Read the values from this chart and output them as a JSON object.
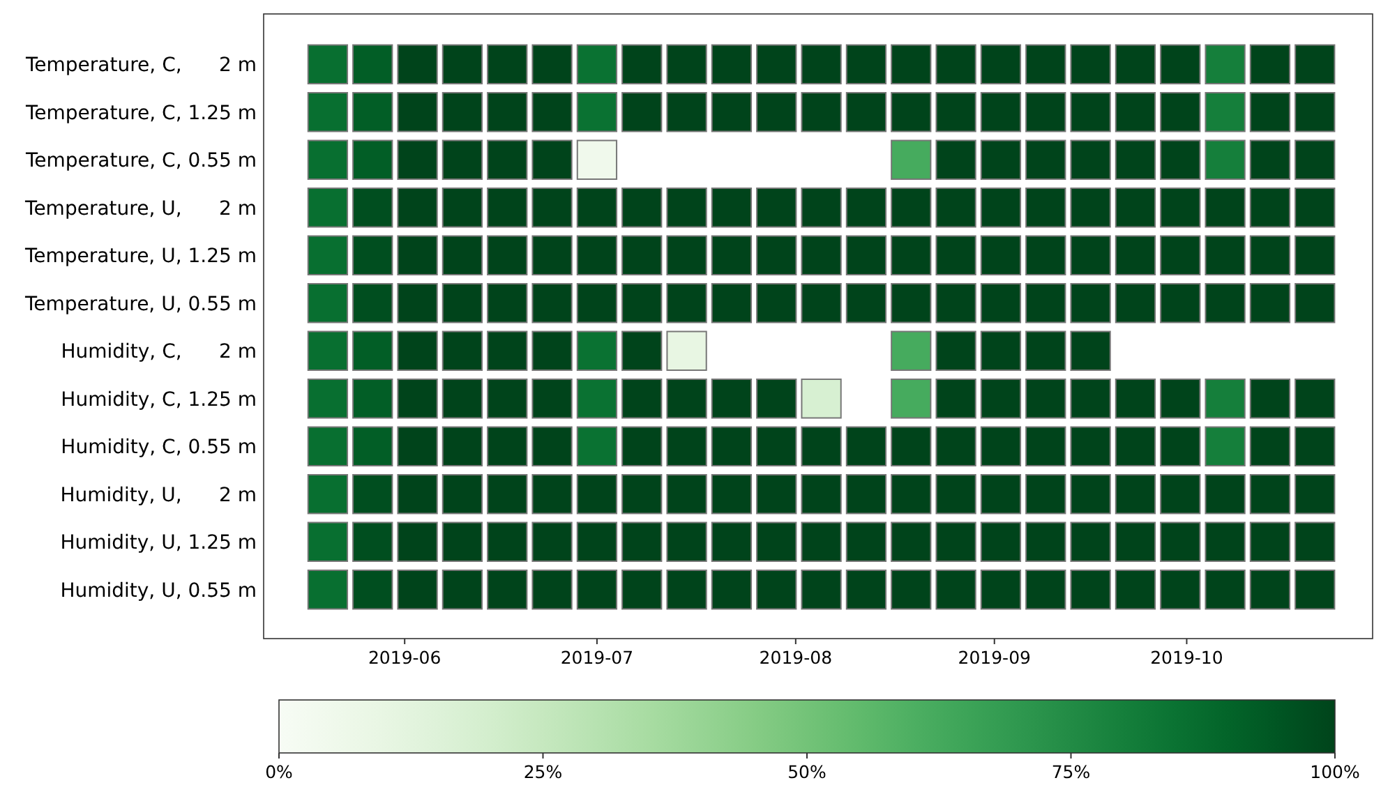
{
  "chart_data": {
    "type": "heatmap",
    "x": [
      "2019-05-20",
      "2019-05-27",
      "2019-06-03",
      "2019-06-10",
      "2019-06-17",
      "2019-06-24",
      "2019-07-01",
      "2019-07-08",
      "2019-07-15",
      "2019-07-22",
      "2019-07-29",
      "2019-08-05",
      "2019-08-12",
      "2019-08-19",
      "2019-08-26",
      "2019-09-02",
      "2019-09-09",
      "2019-09-16",
      "2019-09-23",
      "2019-09-30",
      "2019-10-07",
      "2019-10-14",
      "2019-10-21"
    ],
    "xlim": [
      "2019-05-10",
      "2019-10-30"
    ],
    "xticks": [
      {
        "value": "2019-06-01",
        "label": "2019-06"
      },
      {
        "value": "2019-07-01",
        "label": "2019-07"
      },
      {
        "value": "2019-08-01",
        "label": "2019-08"
      },
      {
        "value": "2019-09-01",
        "label": "2019-09"
      },
      {
        "value": "2019-10-01",
        "label": "2019-10"
      }
    ],
    "y_categories": [
      "Temperature, C,      2 m",
      "Temperature, C, 1.25 m",
      "Temperature, C, 0.55 m",
      "Temperature, U,      2 m",
      "Temperature, U, 1.25 m",
      "Temperature, U, 0.55 m",
      "Humidity, C,      2 m",
      "Humidity, C, 1.25 m",
      "Humidity, C, 0.55 m",
      "Humidity, U,      2 m",
      "Humidity, U, 1.25 m",
      "Humidity, U, 0.55 m"
    ],
    "cells": [
      [
        86,
        92,
        100,
        100,
        100,
        100,
        85,
        100,
        100,
        100,
        100,
        100,
        100,
        100,
        100,
        100,
        100,
        100,
        100,
        100,
        80,
        100,
        100
      ],
      [
        86,
        92,
        100,
        100,
        100,
        100,
        85,
        100,
        100,
        100,
        100,
        100,
        100,
        100,
        100,
        100,
        100,
        100,
        100,
        100,
        80,
        100,
        100
      ],
      [
        86,
        92,
        100,
        100,
        100,
        100,
        5,
        null,
        null,
        null,
        null,
        null,
        null,
        62,
        100,
        100,
        100,
        100,
        100,
        100,
        80,
        100,
        100
      ],
      [
        86,
        97,
        100,
        100,
        100,
        100,
        100,
        100,
        100,
        100,
        100,
        100,
        100,
        100,
        100,
        100,
        100,
        100,
        100,
        100,
        100,
        100,
        100
      ],
      [
        86,
        97,
        100,
        100,
        100,
        100,
        100,
        100,
        100,
        100,
        100,
        100,
        100,
        100,
        100,
        100,
        100,
        100,
        100,
        100,
        100,
        100,
        100
      ],
      [
        86,
        97,
        100,
        100,
        100,
        100,
        100,
        100,
        100,
        100,
        100,
        100,
        100,
        100,
        100,
        100,
        100,
        100,
        100,
        100,
        100,
        100,
        100
      ],
      [
        86,
        92,
        100,
        100,
        100,
        100,
        85,
        100,
        10,
        null,
        null,
        null,
        null,
        62,
        100,
        100,
        100,
        100,
        null,
        null,
        null,
        null,
        null
      ],
      [
        86,
        92,
        100,
        100,
        100,
        100,
        85,
        100,
        100,
        100,
        100,
        18,
        null,
        62,
        100,
        100,
        100,
        100,
        100,
        100,
        80,
        100,
        100
      ],
      [
        86,
        92,
        100,
        100,
        100,
        100,
        85,
        100,
        100,
        100,
        100,
        100,
        100,
        100,
        100,
        100,
        100,
        100,
        100,
        100,
        80,
        100,
        100
      ],
      [
        86,
        97,
        100,
        100,
        100,
        100,
        100,
        100,
        100,
        100,
        100,
        100,
        100,
        100,
        100,
        100,
        100,
        100,
        100,
        100,
        100,
        100,
        100
      ],
      [
        86,
        97,
        100,
        100,
        100,
        100,
        100,
        100,
        100,
        100,
        100,
        100,
        100,
        100,
        100,
        100,
        100,
        100,
        100,
        100,
        100,
        100,
        100
      ],
      [
        86,
        97,
        100,
        100,
        100,
        100,
        100,
        100,
        100,
        100,
        100,
        100,
        100,
        100,
        100,
        100,
        100,
        100,
        100,
        100,
        100,
        100,
        100
      ]
    ],
    "clim": [
      0,
      100
    ],
    "cticks": [
      {
        "value": 0,
        "label": "0%"
      },
      {
        "value": 25,
        "label": "25%"
      },
      {
        "value": 50,
        "label": "50%"
      },
      {
        "value": 75,
        "label": "75%"
      },
      {
        "value": 100,
        "label": "100%"
      }
    ]
  }
}
